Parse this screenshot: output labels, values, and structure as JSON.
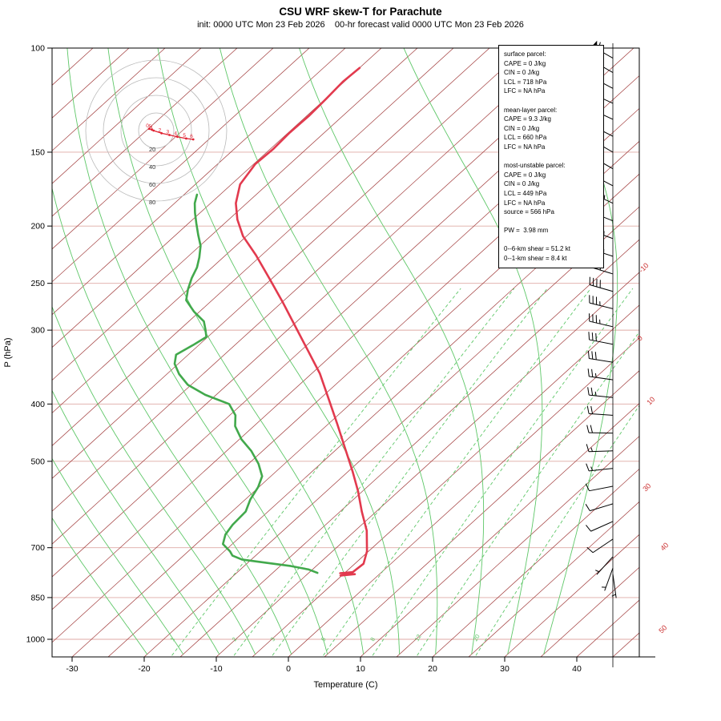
{
  "title": "CSU WRF skew-T for Parachute",
  "subtitle": "init: 0000 UTC Mon 23 Feb 2026    00-hr forecast valid 0000 UTC Mon 23 Feb 2026",
  "axes": {
    "x_label": "Temperature (C)",
    "y_label": "P (hPa)"
  },
  "info_box": {
    "lines": [
      "surface parcel:",
      "CAPE = 0 J/kg",
      "CIN = 0 J/kg",
      "LCL = 718 hPa",
      "LFC = NA hPa",
      "",
      "mean-layer parcel:",
      "CAPE = 9.3 J/kg",
      "CIN = 0 J/kg",
      "LCL = 660 hPa",
      "LFC = NA hPa",
      "",
      "most-unstable parcel:",
      "CAPE = 0 J/kg",
      "CIN = 0 J/kg",
      "LCL = 449 hPa",
      "LFC = NA hPa",
      "source = 566 hPa",
      "",
      "PW =  3.98 mm",
      "",
      "0--6-km shear = 51.2 kt",
      "0--1-km shear = 8.4 kt"
    ]
  },
  "colors": {
    "isotherm": "#a03a3a",
    "isotherm_label": "#cc3333",
    "pressure_grid": "#dfaaa5",
    "mixing_line": "#5ec768",
    "moist_adiabat": "#5ec768",
    "temperature": "#e23a4e",
    "dewpoint": "#42a94c",
    "barb": "#000000",
    "hodograph_ring": "#b9b9b9",
    "hodograph_label": "#333333",
    "hodograph_trace": "#e02231"
  },
  "chart_data": {
    "type": "line",
    "title": "CSU WRF skew-T for Parachute",
    "x_axis": {
      "label": "Temperature (C)",
      "units": "C",
      "ticks": [
        -30,
        -20,
        -10,
        0,
        10,
        20,
        30,
        40
      ]
    },
    "y_axis": {
      "label": "P (hPa)",
      "units": "hPa",
      "scale": "log",
      "ticks": [
        100,
        150,
        200,
        250,
        300,
        400,
        500,
        700,
        850,
        1000
      ]
    },
    "isotherm_step": 5,
    "right_isotherm_labels": [
      "-10",
      "0",
      "10",
      "30",
      "40",
      "50"
    ],
    "mixing_ratio_lines": [
      1,
      2,
      3,
      5,
      8,
      12,
      20
    ],
    "moist_adiabats_thetaw": [
      -20,
      -15,
      -10,
      -5,
      0,
      5,
      10,
      15,
      20,
      25,
      30,
      35
    ],
    "temperature_profile": {
      "name": "temperature",
      "units": [
        "hPa",
        "C"
      ],
      "points": [
        [
          780,
          -5.2
        ],
        [
          776,
          -3.4
        ],
        [
          773,
          -5.6
        ],
        [
          770,
          -4.0
        ],
        [
          745,
          -3.8
        ],
        [
          710,
          -5.2
        ],
        [
          655,
          -8.4
        ],
        [
          608,
          -12.0
        ],
        [
          562,
          -15.6
        ],
        [
          520,
          -19.4
        ],
        [
          475,
          -24.0
        ],
        [
          432,
          -28.8
        ],
        [
          392,
          -33.8
        ],
        [
          355,
          -38.9
        ],
        [
          325,
          -44.0
        ],
        [
          297,
          -49.2
        ],
        [
          270,
          -54.7
        ],
        [
          246,
          -60.2
        ],
        [
          224,
          -65.8
        ],
        [
          208,
          -70.5
        ],
        [
          195,
          -73.8
        ],
        [
          183,
          -76.5
        ],
        [
          170,
          -78.8
        ],
        [
          157,
          -79.8
        ],
        [
          148,
          -79.6
        ],
        [
          139,
          -79.8
        ],
        [
          130,
          -79.7
        ],
        [
          122,
          -79.9
        ],
        [
          114,
          -80.2
        ],
        [
          108,
          -80.0
        ]
      ]
    },
    "dewpoint_profile": {
      "name": "dewpoint",
      "units": [
        "hPa",
        "C"
      ],
      "points": [
        [
          772,
          -8.8
        ],
        [
          762,
          -10.5
        ],
        [
          752,
          -13.5
        ],
        [
          742,
          -17.5
        ],
        [
          733,
          -21.3
        ],
        [
          722,
          -23.2
        ],
        [
          710,
          -24.2
        ],
        [
          690,
          -26.3
        ],
        [
          665,
          -27.4
        ],
        [
          640,
          -27.9
        ],
        [
          608,
          -28.1
        ],
        [
          580,
          -29.3
        ],
        [
          553,
          -30.1
        ],
        [
          530,
          -31.2
        ],
        [
          505,
          -33.6
        ],
        [
          480,
          -36.6
        ],
        [
          459,
          -39.7
        ],
        [
          436,
          -42.6
        ],
        [
          418,
          -44.2
        ],
        [
          400,
          -46.8
        ],
        [
          386,
          -51.5
        ],
        [
          371,
          -55.5
        ],
        [
          356,
          -58.3
        ],
        [
          342,
          -60.5
        ],
        [
          330,
          -61.7
        ],
        [
          318,
          -60.8
        ],
        [
          308,
          -60.2
        ],
        [
          299,
          -61.5
        ],
        [
          290,
          -62.9
        ],
        [
          279,
          -65.8
        ],
        [
          267,
          -68.6
        ],
        [
          256,
          -70.0
        ],
        [
          245,
          -71.2
        ],
        [
          235,
          -72.1
        ],
        [
          226,
          -73.3
        ],
        [
          216,
          -74.9
        ],
        [
          207,
          -76.9
        ],
        [
          198,
          -78.9
        ],
        [
          190,
          -80.7
        ],
        [
          183,
          -82.2
        ],
        [
          177,
          -83.2
        ]
      ]
    },
    "wind_barbs": {
      "units": [
        "hPa",
        "kt",
        "deg_from"
      ],
      "levels": [
        [
          104,
          60,
          300
        ],
        [
          110,
          55,
          300
        ],
        [
          117,
          60,
          298
        ],
        [
          124,
          65,
          295
        ],
        [
          132,
          60,
          295
        ],
        [
          141,
          55,
          297
        ],
        [
          150,
          60,
          300
        ],
        [
          160,
          55,
          300
        ],
        [
          171,
          50,
          298
        ],
        [
          183,
          45,
          295
        ],
        [
          196,
          50,
          292
        ],
        [
          210,
          45,
          290
        ],
        [
          225,
          45,
          288
        ],
        [
          241,
          40,
          287
        ],
        [
          258,
          40,
          286
        ],
        [
          276,
          35,
          284
        ],
        [
          296,
          35,
          283
        ],
        [
          317,
          30,
          281
        ],
        [
          340,
          30,
          279
        ],
        [
          364,
          25,
          278
        ],
        [
          390,
          25,
          276
        ],
        [
          418,
          20,
          274
        ],
        [
          448,
          20,
          271
        ],
        [
          480,
          15,
          268
        ],
        [
          514,
          15,
          264
        ],
        [
          551,
          12,
          259
        ],
        [
          590,
          10,
          253
        ],
        [
          632,
          10,
          246
        ],
        [
          677,
          8,
          236
        ],
        [
          725,
          5,
          222
        ],
        [
          758,
          5,
          200
        ],
        [
          776,
          3,
          172
        ]
      ]
    },
    "hodograph": {
      "rings_kt": [
        20,
        40,
        60,
        80
      ],
      "units": "kt",
      "points": [
        {
          "label": "0",
          "u": -8,
          "v": 2
        },
        {
          "label": "5",
          "u": -5,
          "v": 1
        },
        {
          "label": "1",
          "u": -3,
          "v": 0
        },
        {
          "label": "2",
          "u": 6,
          "v": -3
        },
        {
          "label": "3",
          "u": 15,
          "v": -5
        },
        {
          "label": "4",
          "u": 24,
          "v": -7
        },
        {
          "label": "5",
          "u": 34,
          "v": -9
        },
        {
          "label": "6",
          "u": 42,
          "v": -10
        }
      ]
    }
  }
}
